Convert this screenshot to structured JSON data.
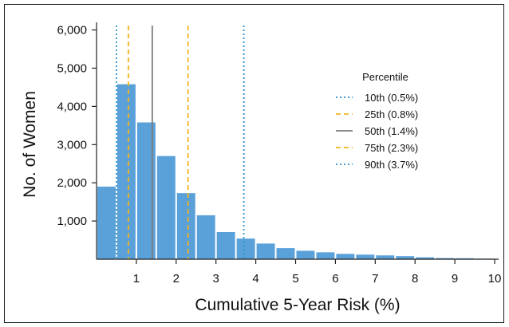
{
  "chart_data": {
    "type": "bar",
    "title": "",
    "xlabel": "Cumulative 5-Year Risk (%)",
    "ylabel": "No. of Women",
    "xlim": [
      0,
      10.1
    ],
    "ylim": [
      0,
      6200
    ],
    "x_ticks": [
      "1",
      "2",
      "3",
      "4",
      "5",
      "6",
      "7",
      "8",
      "9",
      "10"
    ],
    "y_ticks": [
      "1,000",
      "2,000",
      "3,000",
      "4,000",
      "5,000",
      "6,000"
    ],
    "bin_width": 0.5,
    "bin_starts": [
      0,
      0.5,
      1,
      1.5,
      2,
      2.5,
      3,
      3.5,
      4,
      4.5,
      5,
      5.5,
      6,
      6.5,
      7,
      7.5,
      8,
      8.5,
      9,
      9.5
    ],
    "values": [
      1900,
      4580,
      3580,
      2700,
      1730,
      1150,
      710,
      540,
      410,
      290,
      220,
      180,
      140,
      120,
      100,
      80,
      50,
      30,
      25,
      15
    ],
    "bar_color": "#5aa1da",
    "grid": false,
    "legend": {
      "title": "Percentile",
      "placement": "top-right",
      "entries": [
        {
          "label": "10th (0.5%)",
          "x": 0.5,
          "color": "#2f8fc9",
          "style": "dotted"
        },
        {
          "label": "25th (0.8%)",
          "x": 0.8,
          "color": "#f2b51f",
          "style": "dashed"
        },
        {
          "label": "50th (1.4%)",
          "x": 1.4,
          "color": "#7d7d7d",
          "style": "solid"
        },
        {
          "label": "75th (2.3%)",
          "x": 2.3,
          "color": "#f2b51f",
          "style": "dashed"
        },
        {
          "label": "90th (3.7%)",
          "x": 3.7,
          "color": "#2f8fc9",
          "style": "dotted"
        }
      ]
    }
  }
}
